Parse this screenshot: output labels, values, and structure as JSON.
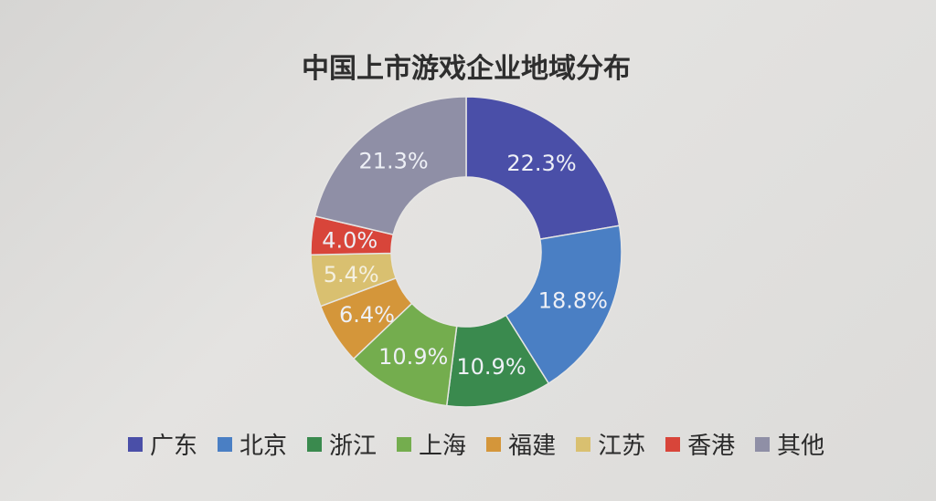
{
  "chart_data": {
    "type": "pie",
    "title": "中国上市游戏企业地域分布",
    "categories": [
      "广东",
      "北京",
      "浙江",
      "上海",
      "福建",
      "江苏",
      "香港",
      "其他"
    ],
    "values": [
      22.3,
      18.8,
      10.9,
      10.9,
      6.4,
      5.4,
      4.0,
      21.3
    ],
    "labels": [
      "22.3%",
      "18.8%",
      "10.9%",
      "10.9%",
      "6.4%",
      "5.4%",
      "4.0%",
      "21.3%"
    ],
    "colors": [
      "#4a4fa8",
      "#4a7fc4",
      "#3a8a4e",
      "#74ad4e",
      "#d4963a",
      "#d9c070",
      "#d8453a",
      "#8f8fa6"
    ],
    "legend_position": "bottom",
    "donut": true
  }
}
